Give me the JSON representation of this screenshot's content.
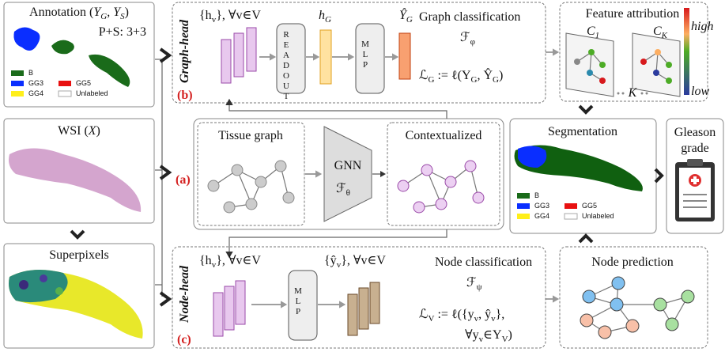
{
  "annotation": {
    "title": [
      "Annotation (",
      "Y",
      "G",
      ", ",
      "Y",
      "S",
      ")"
    ],
    "score": "P+S: 3+3",
    "legend": [
      "B",
      "GG3",
      "GG5",
      "GG4",
      "Unlabeled"
    ]
  },
  "wsi": {
    "title": [
      "WSI (",
      "X",
      ")"
    ]
  },
  "superpixels": {
    "title": "Superpixels"
  },
  "graph_head": {
    "label": "Graph-head",
    "tag": "(b)",
    "input": [
      "{h",
      "v",
      "}, ∀v∈V"
    ],
    "readout": "READOUT",
    "embedding": [
      "h",
      "G"
    ],
    "mlp": "MLP",
    "output": [
      "Ŷ",
      "G"
    ],
    "task": "Graph classification",
    "function": [
      "ℱ",
      "φ"
    ],
    "loss": [
      "ℒ",
      "G",
      " := ℓ(Y",
      "G",
      ", Ŷ",
      "G",
      ")"
    ]
  },
  "feature_attribution": {
    "title": "Feature attribution",
    "first": [
      "C",
      "1"
    ],
    "last": [
      "C",
      "K"
    ],
    "high": "high",
    "low": "low",
    "k": "K"
  },
  "tissue": {
    "tag": "(a)",
    "graph": "Tissue graph",
    "gnn": "GNN",
    "function": [
      "ℱ",
      "θ"
    ],
    "contextualized": "Contextualized"
  },
  "segmentation": {
    "title": "Segmentation",
    "legend": [
      "B",
      "GG3",
      "GG5",
      "GG4",
      "Unlabeled"
    ]
  },
  "gleason": {
    "title": [
      "Gleason",
      "grade"
    ]
  },
  "node_head": {
    "label": "Node-head",
    "tag": "(c)",
    "input": [
      "{h",
      "v",
      "}, ∀v∈V"
    ],
    "mlp": "MLP",
    "output": [
      "{ŷ",
      "v",
      "}, ∀v∈V"
    ],
    "task": "Node classification",
    "function": [
      "ℱ",
      "ψ"
    ],
    "loss": [
      "ℒ",
      "V",
      " := ℓ({y",
      "v",
      ", ŷ",
      "v",
      "},"
    ],
    "loss_cont": [
      "∀y",
      "v",
      "∈Y",
      "V",
      ")"
    ]
  },
  "node_prediction": {
    "title": "Node prediction"
  }
}
